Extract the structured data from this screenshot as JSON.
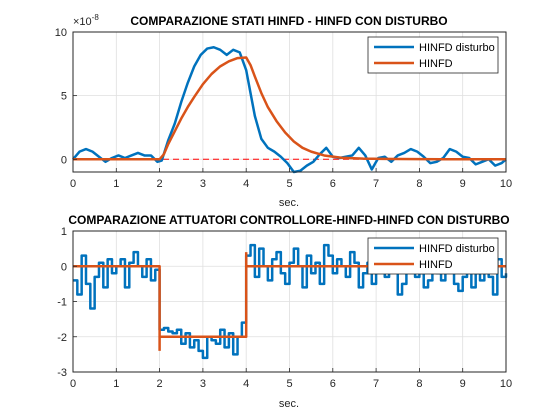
{
  "colors": {
    "blue": "#0072BD",
    "orange": "#D95319",
    "grid": "#dfdfdf",
    "axis": "#262626"
  },
  "chart_data": [
    {
      "type": "line",
      "title": "COMPARAZIONE STATI HINFD - HINFD CON DISTURBO",
      "xlabel": "sec.",
      "ylabel": "",
      "exponent_label": "×10",
      "exponent_power": "-8",
      "xlim": [
        0,
        10
      ],
      "ylim": [
        -1,
        10
      ],
      "xticks": [
        0,
        1,
        2,
        3,
        4,
        5,
        6,
        7,
        8,
        9,
        10
      ],
      "yticks": [
        0,
        5,
        10
      ],
      "grid": true,
      "legend_position": "top-right",
      "legend": [
        "HINFD disturbo",
        "HINFD"
      ],
      "reference_line": {
        "y": 0,
        "style": "dashed",
        "color": "#ff0000"
      },
      "series": [
        {
          "name": "HINFD disturbo",
          "color": "#0072BD",
          "x": [
            0,
            0.15,
            0.3,
            0.45,
            0.6,
            0.75,
            0.9,
            1.05,
            1.2,
            1.35,
            1.5,
            1.65,
            1.8,
            1.95,
            2.05,
            2.2,
            2.35,
            2.5,
            2.65,
            2.8,
            2.95,
            3.1,
            3.25,
            3.4,
            3.55,
            3.7,
            3.85,
            4.0,
            4.1,
            4.2,
            4.35,
            4.5,
            4.65,
            4.8,
            4.95,
            5.1,
            5.25,
            5.4,
            5.55,
            5.7,
            5.85,
            6.0,
            6.15,
            6.3,
            6.45,
            6.6,
            6.75,
            6.9,
            7.05,
            7.2,
            7.35,
            7.5,
            7.65,
            7.8,
            7.95,
            8.1,
            8.25,
            8.4,
            8.55,
            8.7,
            8.85,
            9.0,
            9.15,
            9.3,
            9.45,
            9.6,
            9.75,
            9.9,
            10.0
          ],
          "values": [
            0.0,
            0.6,
            0.8,
            0.6,
            0.2,
            -0.2,
            0.1,
            0.3,
            0.1,
            0.3,
            0.5,
            0.3,
            0.3,
            -0.2,
            -0.1,
            1.5,
            2.8,
            4.5,
            6.0,
            7.3,
            8.2,
            8.7,
            8.8,
            8.6,
            8.2,
            8.6,
            8.4,
            7.0,
            5.2,
            3.4,
            1.6,
            0.9,
            0.6,
            0.2,
            -0.3,
            -1.0,
            -0.9,
            -0.5,
            -0.2,
            0.4,
            0.9,
            0.2,
            0.1,
            0.2,
            0.3,
            0.9,
            0.3,
            -0.8,
            0.1,
            0.2,
            -0.2,
            0.3,
            0.5,
            0.8,
            0.6,
            0.2,
            -0.3,
            -0.2,
            0.1,
            0.8,
            0.6,
            0.2,
            0.1,
            -0.4,
            -0.2,
            0.0,
            -0.5,
            -0.3,
            0.0
          ]
        },
        {
          "name": "HINFD",
          "color": "#D95319",
          "x": [
            0,
            1.0,
            2.0,
            2.1,
            2.2,
            2.35,
            2.5,
            2.65,
            2.8,
            3.0,
            3.2,
            3.4,
            3.6,
            3.8,
            4.0,
            4.1,
            4.2,
            4.35,
            4.5,
            4.7,
            4.9,
            5.1,
            5.3,
            5.5,
            5.8,
            6.2,
            6.7,
            7.5,
            8.5,
            10.0
          ],
          "values": [
            0,
            0,
            0,
            0.4,
            1.2,
            2.2,
            3.2,
            4.1,
            4.9,
            5.9,
            6.7,
            7.3,
            7.7,
            7.95,
            8.0,
            7.4,
            6.5,
            5.2,
            4.1,
            3.0,
            2.1,
            1.4,
            0.9,
            0.6,
            0.3,
            0.12,
            0.05,
            0.02,
            0.0,
            0.0
          ]
        }
      ]
    },
    {
      "type": "line",
      "title": "COMPARAZIONE ATTUATORI CONTROLLORE-HINFD-HINFD CON DISTURBO",
      "xlabel": "sec.",
      "ylabel": "",
      "xlim": [
        0,
        10
      ],
      "ylim": [
        -3,
        1
      ],
      "xticks": [
        0,
        1,
        2,
        3,
        4,
        5,
        6,
        7,
        8,
        9,
        10
      ],
      "yticks": [
        -3,
        -2,
        -1,
        0,
        1
      ],
      "grid": true,
      "step": true,
      "legend_position": "top-right",
      "legend": [
        "HINFD disturbo",
        "HINFD"
      ],
      "series": [
        {
          "name": "HINFD disturbo",
          "color": "#0072BD",
          "x": [
            0,
            0.1,
            0.2,
            0.3,
            0.4,
            0.5,
            0.6,
            0.7,
            0.8,
            0.9,
            1.0,
            1.1,
            1.2,
            1.3,
            1.4,
            1.5,
            1.6,
            1.7,
            1.8,
            1.9,
            2.0,
            2.1,
            2.2,
            2.3,
            2.4,
            2.5,
            2.6,
            2.7,
            2.8,
            2.9,
            3.0,
            3.1,
            3.2,
            3.3,
            3.4,
            3.5,
            3.6,
            3.7,
            3.8,
            3.9,
            4.0,
            4.1,
            4.2,
            4.3,
            4.4,
            4.5,
            4.6,
            4.7,
            4.8,
            4.9,
            5.0,
            5.1,
            5.2,
            5.3,
            5.4,
            5.5,
            5.6,
            5.7,
            5.8,
            5.9,
            6.0,
            6.1,
            6.2,
            6.3,
            6.4,
            6.5,
            6.6,
            6.7,
            6.8,
            6.9,
            7.0,
            7.1,
            7.2,
            7.3,
            7.4,
            7.5,
            7.6,
            7.7,
            7.8,
            7.9,
            8.0,
            8.1,
            8.2,
            8.3,
            8.4,
            8.5,
            8.6,
            8.7,
            8.8,
            8.9,
            9.0,
            9.1,
            9.2,
            9.3,
            9.4,
            9.5,
            9.6,
            9.7,
            9.8,
            9.9,
            10.0
          ],
          "values": [
            -0.4,
            -0.8,
            0.3,
            -0.5,
            -1.2,
            -0.3,
            0.1,
            -0.6,
            0.2,
            -0.2,
            0.0,
            0.2,
            -0.6,
            0.1,
            0.4,
            0.0,
            -0.3,
            0.2,
            -0.4,
            -0.1,
            -1.8,
            -1.75,
            -1.85,
            -1.9,
            -1.8,
            -2.2,
            -1.9,
            -2.3,
            -2.1,
            -2.4,
            -2.6,
            -2.0,
            -2.1,
            -2.2,
            -1.8,
            -2.3,
            -1.9,
            -2.5,
            -2.0,
            -1.6,
            0.3,
            0.6,
            -0.3,
            0.5,
            0.0,
            -0.4,
            0.2,
            0.4,
            -0.2,
            -0.5,
            0.1,
            0.5,
            0.0,
            -0.6,
            0.3,
            -0.2,
            0.1,
            -0.5,
            0.6,
            0.3,
            -0.2,
            0.2,
            0.0,
            -0.3,
            0.4,
            0.1,
            -0.6,
            -0.2,
            0.1,
            -0.5,
            0.3,
            0.2,
            -0.3,
            -0.1,
            0.1,
            -0.8,
            -0.5,
            -0.1,
            0.1,
            -0.3,
            -0.2,
            -0.6,
            -0.4,
            0.3,
            -0.2,
            -0.4,
            0.2,
            -0.1,
            -0.5,
            -0.7,
            -0.3,
            0.1,
            -0.6,
            -0.2,
            -0.4,
            0.1,
            -0.3,
            -0.8,
            0.2,
            -0.3,
            -0.2
          ]
        },
        {
          "name": "HINFD",
          "color": "#D95319",
          "x": [
            0,
            2.0,
            2.0,
            4.0,
            4.0,
            10.0
          ],
          "values": [
            0,
            0,
            -2,
            -2,
            0,
            0
          ],
          "spikes": [
            {
              "x": 2.0,
              "min": -2.4
            },
            {
              "x": 4.0,
              "max": 0.4
            }
          ]
        }
      ]
    }
  ]
}
